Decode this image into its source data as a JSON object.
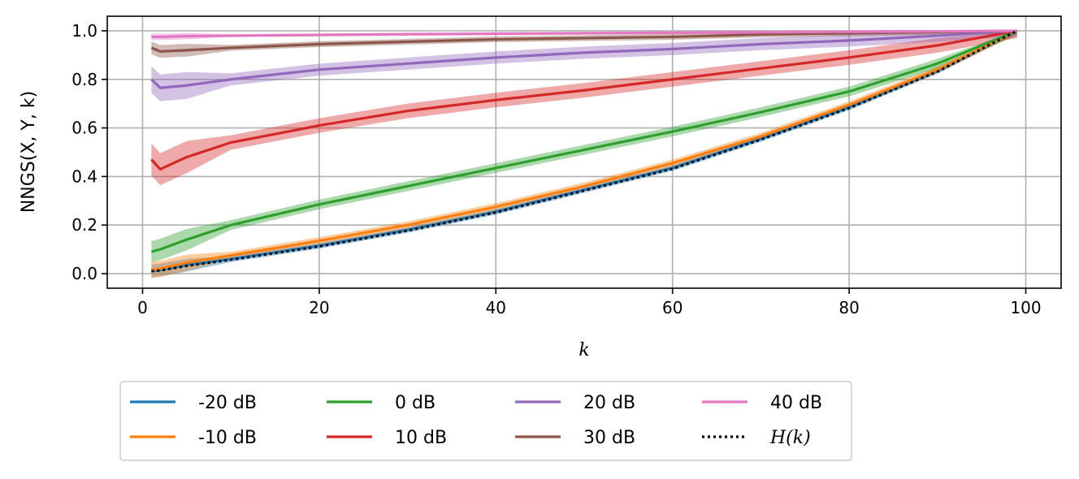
{
  "chart_data": {
    "type": "line",
    "xlabel": "k",
    "ylabel": "NNGS(X, Y, k)",
    "xlim": [
      -4,
      104
    ],
    "ylim": [
      -0.06,
      1.06
    ],
    "x_ticks": [
      0,
      20,
      40,
      60,
      80,
      100
    ],
    "y_ticks": [
      0.0,
      0.2,
      0.4,
      0.6,
      0.8,
      1.0
    ],
    "x_tick_labels": [
      "0",
      "20",
      "40",
      "60",
      "80",
      "100"
    ],
    "y_tick_labels": [
      "0.0",
      "0.2",
      "0.4",
      "0.6",
      "0.8",
      "1.0"
    ],
    "grid": true,
    "legend_position": "below",
    "x": [
      1,
      2,
      5,
      10,
      20,
      30,
      40,
      50,
      60,
      70,
      80,
      90,
      99
    ],
    "series": [
      {
        "name": "-20 dB",
        "color": "#1f77b4",
        "style": "solid",
        "values": [
          0.01,
          0.015,
          0.035,
          0.06,
          0.115,
          0.18,
          0.255,
          0.345,
          0.435,
          0.555,
          0.685,
          0.835,
          1.0
        ],
        "band": 0.012
      },
      {
        "name": "-10 dB",
        "color": "#ff7f0e",
        "style": "solid",
        "values": [
          0.015,
          0.02,
          0.045,
          0.075,
          0.135,
          0.2,
          0.275,
          0.36,
          0.455,
          0.565,
          0.695,
          0.84,
          1.0
        ],
        "band": 0.015
      },
      {
        "name": "0 dB",
        "color": "#2ca02c",
        "style": "solid",
        "values": [
          0.09,
          0.1,
          0.14,
          0.2,
          0.285,
          0.36,
          0.435,
          0.51,
          0.585,
          0.665,
          0.75,
          0.865,
          1.0
        ],
        "band": 0.02
      },
      {
        "name": "10 dB",
        "color": "#d62728",
        "style": "solid",
        "values": [
          0.47,
          0.43,
          0.48,
          0.54,
          0.61,
          0.67,
          0.715,
          0.755,
          0.8,
          0.845,
          0.89,
          0.94,
          1.0
        ],
        "band": 0.03
      },
      {
        "name": "20 dB",
        "color": "#9467bd",
        "style": "solid",
        "values": [
          0.8,
          0.765,
          0.775,
          0.8,
          0.84,
          0.865,
          0.89,
          0.91,
          0.925,
          0.945,
          0.96,
          0.98,
          1.0
        ],
        "band": 0.025
      },
      {
        "name": "30 dB",
        "color": "#8c564b",
        "style": "solid",
        "values": [
          0.93,
          0.915,
          0.92,
          0.93,
          0.945,
          0.955,
          0.965,
          0.97,
          0.975,
          0.985,
          0.99,
          0.995,
          1.0
        ],
        "band": 0.012
      },
      {
        "name": "40 dB",
        "color": "#e377c2",
        "style": "solid",
        "values": [
          0.975,
          0.975,
          0.978,
          0.98,
          0.983,
          0.986,
          0.988,
          0.99,
          0.992,
          0.994,
          0.996,
          0.998,
          1.0
        ],
        "band": 0.006
      },
      {
        "name": "H(k)",
        "color": "#000000",
        "style": "dotted",
        "values": [
          0.01,
          0.013,
          0.032,
          0.057,
          0.112,
          0.177,
          0.252,
          0.342,
          0.432,
          0.552,
          0.682,
          0.832,
          1.0
        ],
        "band": 0
      }
    ]
  }
}
